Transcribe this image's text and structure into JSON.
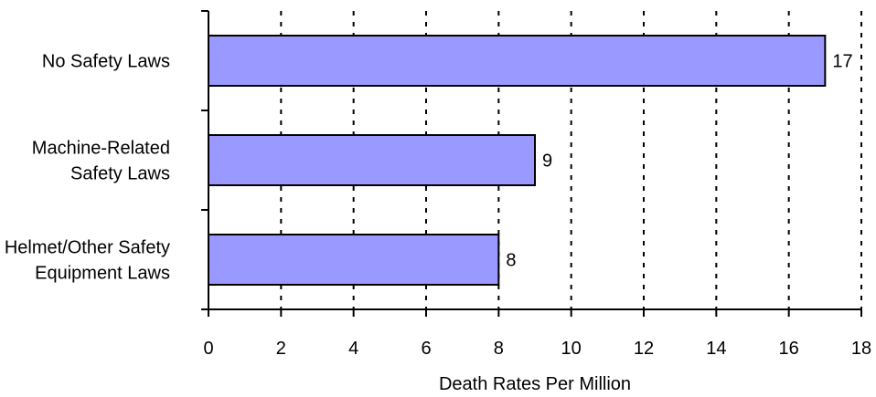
{
  "chart_data": {
    "type": "bar",
    "orientation": "horizontal",
    "categories": [
      [
        "No Safety Laws"
      ],
      [
        "Machine-Related",
        "Safety Laws"
      ],
      [
        "Helmet/Other Safety",
        "Equipment Laws"
      ]
    ],
    "values": [
      17,
      9,
      8
    ],
    "data_labels": [
      "17",
      "9",
      "8"
    ],
    "xlabel": "Death Rates Per Million",
    "ylabel": "",
    "title": "",
    "xlim": [
      0,
      18
    ],
    "xticks": [
      0,
      2,
      4,
      6,
      8,
      10,
      12,
      14,
      16,
      18
    ],
    "grid": "vertical-dotted",
    "bar_color": "#9999ff",
    "bar_edge_color": "#000000"
  }
}
